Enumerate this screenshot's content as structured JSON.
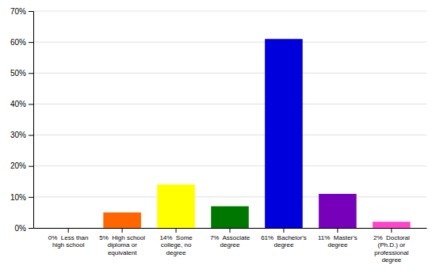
{
  "chart_data": {
    "type": "bar",
    "categories": [
      "0%  Less than\nhigh school",
      "5%  High school\ndiploma or\nequivalent",
      "14%  Some\ncollege, no\ndegree",
      "7%  Associate\ndegree",
      "61%  Bachelor's\ndegree",
      "11%  Master's\ndegree",
      "2%  Doctoral\n(Ph.D.) or\nprofessional\ndegree"
    ],
    "values": [
      0,
      5,
      14,
      7,
      61,
      11,
      2
    ],
    "colors": [
      "#dd0000",
      "#ff6600",
      "#ffff00",
      "#007700",
      "#0000dd",
      "#7700bb",
      "#ff44cc"
    ],
    "ylim": [
      0,
      70
    ],
    "yticks": [
      {
        "value": 0,
        "label": "0%"
      },
      {
        "value": 10,
        "label": "10%"
      },
      {
        "value": 20,
        "label": "20%"
      },
      {
        "value": 30,
        "label": "30%"
      },
      {
        "value": 40,
        "label": "40%"
      },
      {
        "value": 50,
        "label": "50%"
      },
      {
        "value": 60,
        "label": "60%"
      },
      {
        "value": 70,
        "label": "70%"
      }
    ],
    "grid": true
  }
}
